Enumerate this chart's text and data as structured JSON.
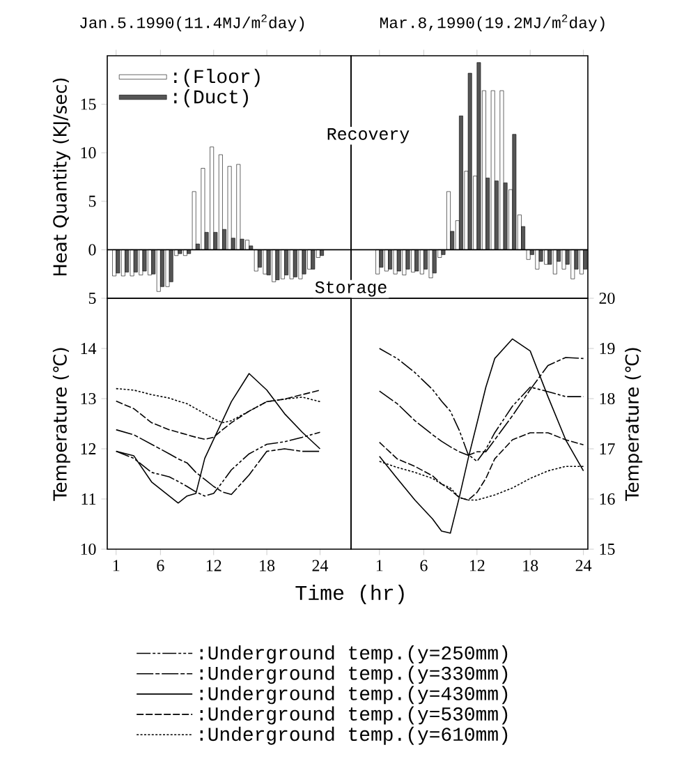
{
  "chart_data": [
    {
      "type": "bar",
      "title": "Jan.5.1990(11.4MJ/m$^{2}$day)",
      "ylabel": "Heat Quantity (KJ/sec)",
      "x": [
        1,
        2,
        3,
        4,
        5,
        6,
        7,
        8,
        9,
        10,
        11,
        12,
        13,
        14,
        15,
        16,
        17,
        18,
        19,
        20,
        21,
        22,
        23,
        24
      ],
      "xlim": [
        0,
        27.5
      ],
      "ylim": [
        -5,
        20
      ],
      "xticks": [
        1,
        6,
        12,
        18,
        24
      ],
      "yticks": [
        {
          "value": -5,
          "label": "5"
        },
        0,
        5,
        10,
        15
      ],
      "tick_labels": "y",
      "legend": "top left",
      "annotations": [
        "Recovery",
        "Storage"
      ],
      "series": [
        {
          "name": ":(Floor)",
          "color": "#ffffff",
          "values": [
            -2.7,
            -2.7,
            -2.7,
            -2.6,
            -2.6,
            -4.3,
            -3.8,
            -0.6,
            -0.6,
            6.0,
            8.4,
            10.6,
            9.8,
            8.6,
            8.8,
            1.0,
            -2.2,
            -2.5,
            -3.3,
            -3.0,
            -3.0,
            -3.0,
            -2.0,
            -0.8
          ]
        },
        {
          "name": ":(Duct)",
          "color": "#555555",
          "values": [
            -2.4,
            -2.3,
            -2.3,
            -2.2,
            -2.5,
            -3.8,
            -3.3,
            -0.4,
            -0.4,
            0.6,
            1.8,
            1.8,
            2.1,
            1.2,
            1.1,
            0.4,
            -1.8,
            -2.6,
            -3.1,
            -2.6,
            -2.8,
            -2.5,
            -2.0,
            -0.6
          ]
        }
      ]
    },
    {
      "type": "bar",
      "title": "Mar.8,1990(19.2MJ/m$^{2}$day)",
      "x": [
        1,
        2,
        3,
        4,
        5,
        6,
        7,
        8,
        9,
        10,
        11,
        12,
        13,
        14,
        15,
        16,
        17,
        18,
        19,
        20,
        21,
        22,
        23,
        24
      ],
      "xlim": [
        -2.2,
        24.5
      ],
      "ylim": [
        -5,
        20
      ],
      "xticks": [
        1,
        6,
        12,
        18,
        24
      ],
      "tick_labels": false,
      "series": [
        {
          "color": "#ffffff",
          "values": [
            -2.5,
            -2.2,
            -2.5,
            -2.6,
            -2.3,
            -2.5,
            -2.9,
            -0.8,
            6.0,
            3.0,
            8.1,
            7.6,
            16.4,
            16.4,
            16.4,
            6.2,
            3.6,
            -1.0,
            -2.0,
            -1.5,
            -2.5,
            -2.0,
            -3.0,
            -2.5
          ]
        },
        {
          "color": "#555555",
          "values": [
            -1.8,
            -2.0,
            -2.2,
            -2.0,
            -2.2,
            -2.0,
            -2.4,
            -0.5,
            1.9,
            13.8,
            18.2,
            19.3,
            7.4,
            7.1,
            6.9,
            11.9,
            2.4,
            -0.5,
            -1.2,
            -1.5,
            -1.2,
            -1.5,
            -2.0,
            -2.0
          ]
        }
      ]
    },
    {
      "type": "line",
      "xlabel": "Time (hr)",
      "ylabel": "Temperature (℃)",
      "x": [
        1,
        3,
        5,
        7,
        8,
        9,
        10,
        11,
        12,
        13,
        14,
        16,
        18,
        20,
        22,
        24
      ],
      "xlim": [
        0,
        27.5
      ],
      "ylim": [
        10,
        15
      ],
      "xticks": [
        1,
        6,
        12,
        18,
        24
      ],
      "yticks": [
        10,
        11,
        12,
        13,
        14
      ],
      "legend": "bottom",
      "series": [
        {
          "name": ":Underground temp.(y=250mm)",
          "color": "#000000",
          "line_style": "dashdot",
          "values": [
            11.95,
            11.81,
            11.53,
            11.44,
            11.35,
            11.25,
            11.14,
            11.06,
            11.11,
            11.34,
            11.58,
            11.9,
            12.09,
            12.14,
            12.23,
            12.33
          ]
        },
        {
          "name": ":Underground temp.(y=330mm)",
          "color": "#000000",
          "line_style": "longdash",
          "values": [
            12.38,
            12.28,
            12.09,
            11.9,
            11.8,
            11.72,
            11.53,
            11.39,
            11.25,
            11.14,
            11.09,
            11.48,
            11.95,
            12.0,
            11.95,
            11.95
          ]
        },
        {
          "name": ":Underground temp.(y=430mm)",
          "color": "#000000",
          "line_style": "solid",
          "values": [
            11.95,
            11.86,
            11.34,
            11.06,
            10.92,
            11.06,
            11.11,
            11.81,
            12.19,
            12.56,
            12.94,
            13.5,
            13.17,
            12.7,
            12.33,
            12.0
          ]
        },
        {
          "name": ":Underground temp.(y=530mm)",
          "color": "#000000",
          "line_style": "dashed",
          "values": [
            12.95,
            12.8,
            12.52,
            12.38,
            12.33,
            12.28,
            12.23,
            12.19,
            12.23,
            12.38,
            12.52,
            12.75,
            12.94,
            12.99,
            13.08,
            13.17
          ]
        },
        {
          "name": ":Underground temp.(y=610mm)",
          "color": "#000000",
          "line_style": "dotted",
          "values": [
            13.2,
            13.17,
            13.08,
            13.01,
            12.95,
            12.9,
            12.8,
            12.7,
            12.6,
            12.52,
            12.56,
            12.75,
            12.94,
            12.99,
            13.03,
            12.94
          ]
        }
      ]
    },
    {
      "type": "line",
      "y2label": "Temperature (℃)",
      "x": [
        1,
        3,
        5,
        7,
        8,
        9,
        10,
        11,
        12,
        13,
        14,
        16,
        18,
        20,
        22,
        24
      ],
      "xlim": [
        -2.2,
        24.5
      ],
      "y2lim": [
        15,
        20
      ],
      "xticks": [
        1,
        6,
        12,
        18,
        24
      ],
      "y2ticks": [
        15,
        16,
        17,
        18,
        19,
        20
      ],
      "series": [
        {
          "axis": "y2",
          "color": "#000000",
          "line_style": "dashdot",
          "values": [
            19.0,
            18.8,
            18.52,
            18.18,
            17.95,
            17.75,
            17.37,
            16.89,
            16.75,
            16.99,
            17.32,
            17.85,
            18.23,
            18.14,
            18.04,
            18.04
          ]
        },
        {
          "axis": "y2",
          "color": "#000000",
          "line_style": "longdash",
          "values": [
            18.15,
            17.9,
            17.56,
            17.28,
            17.15,
            17.04,
            16.94,
            16.87,
            16.94,
            16.94,
            17.18,
            17.66,
            18.18,
            18.66,
            18.82,
            18.8
          ]
        },
        {
          "axis": "y2",
          "color": "#000000",
          "line_style": "solid",
          "values": [
            16.85,
            16.41,
            15.98,
            15.6,
            15.36,
            15.32,
            16.03,
            16.8,
            17.51,
            18.23,
            18.8,
            19.19,
            18.95,
            18.04,
            17.18,
            16.56
          ]
        },
        {
          "axis": "y2",
          "color": "#000000",
          "line_style": "dashed",
          "values": [
            17.13,
            16.8,
            16.65,
            16.46,
            16.3,
            16.18,
            16.03,
            15.98,
            16.13,
            16.41,
            16.8,
            17.18,
            17.32,
            17.32,
            17.18,
            17.08
          ]
        },
        {
          "axis": "y2",
          "color": "#000000",
          "line_style": "dotted",
          "values": [
            16.75,
            16.63,
            16.53,
            16.41,
            16.3,
            16.22,
            16.03,
            15.98,
            15.98,
            16.03,
            16.08,
            16.22,
            16.41,
            16.56,
            16.65,
            16.65
          ]
        }
      ]
    }
  ]
}
